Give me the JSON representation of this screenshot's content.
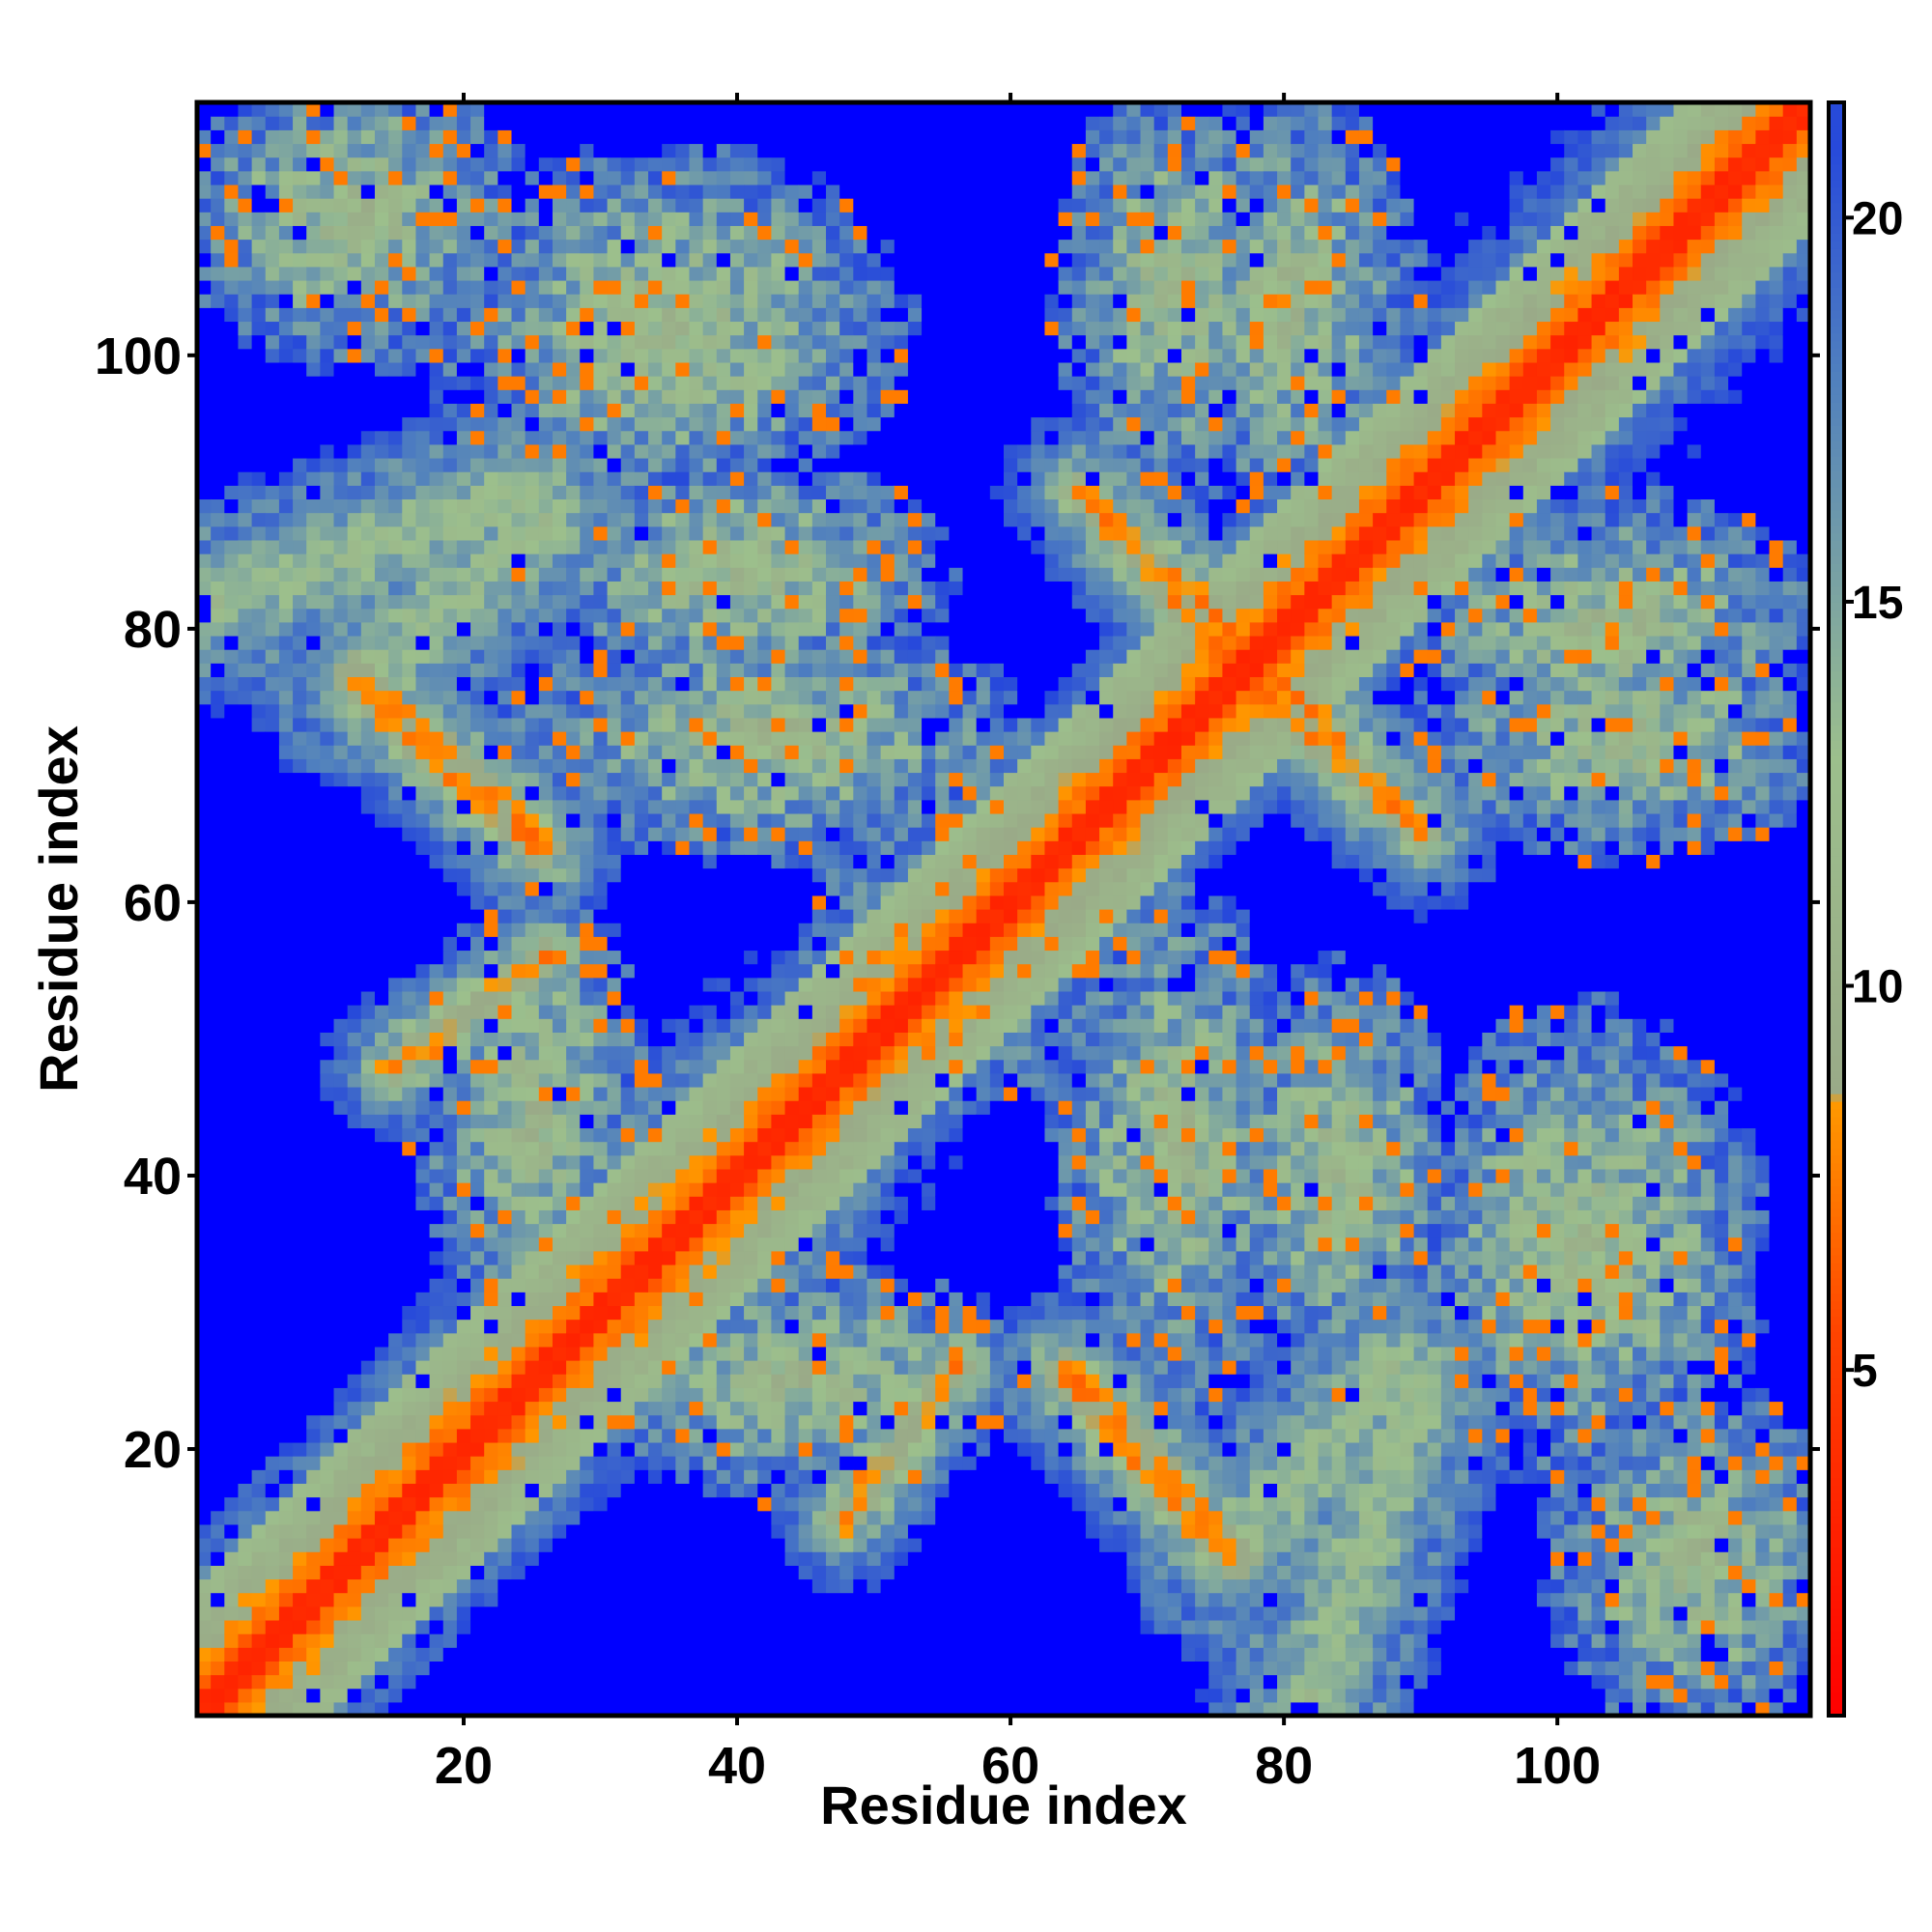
{
  "chart_data": {
    "type": "heatmap",
    "title": "",
    "xlabel": "Residue index",
    "ylabel": "Residue index",
    "n_residues": 118,
    "xlim": [
      0.5,
      118.5
    ],
    "ylim": [
      0.5,
      118.5
    ],
    "x_ticks": [
      20,
      40,
      60,
      80,
      100
    ],
    "y_ticks": [
      20,
      40,
      60,
      80,
      100
    ],
    "x_tick_labels": [
      "20",
      "40",
      "60",
      "80",
      "100"
    ],
    "y_tick_labels": [
      "20",
      "40",
      "60",
      "80",
      "100"
    ],
    "colorbar": {
      "range": [
        0.5,
        21.5
      ],
      "ticks": [
        5,
        10,
        15,
        20
      ],
      "tick_labels": [
        "5",
        "10",
        "15",
        "20"
      ],
      "stops": [
        {
          "value": 0.5,
          "color": "#ff0000"
        },
        {
          "value": 5.5,
          "color": "#ff4400"
        },
        {
          "value": 8.5,
          "color": "#ff9900"
        },
        {
          "value": 8.6,
          "color": "#9aaa88"
        },
        {
          "value": 13.0,
          "color": "#9cbf8c"
        },
        {
          "value": 18.0,
          "color": "#4f7fbf"
        },
        {
          "value": 21.5,
          "color": "#1f3fe0"
        }
      ],
      "saturation_color": "#0000ff",
      "saturation_value": 21
    },
    "encoding": "Symmetric distance map. Main diagonal distance ~3.8. Contact bands listed as segments in residue coordinates.",
    "diagonal_band": {
      "width": 3.2,
      "core": 0.8,
      "color": "#ff0000"
    },
    "contact_bands": [
      {
        "name": "helix-1",
        "from": [
          1,
          1
        ],
        "to": [
          26,
          26
        ],
        "width": 6.0,
        "kind": "diagonal"
      },
      {
        "name": "helix-2",
        "from": [
          26,
          26
        ],
        "to": [
          46,
          46
        ],
        "width": 9.0,
        "kind": "diagonal"
      },
      {
        "name": "helix-3",
        "from": [
          96,
          96
        ],
        "to": [
          118,
          118
        ],
        "width": 9.0,
        "kind": "diagonal"
      },
      {
        "name": "anti-1",
        "from": [
          12,
          76
        ],
        "to": [
          25,
          64
        ],
        "width": 3.0,
        "strong": 3.2
      },
      {
        "name": "anti-2",
        "from": [
          64,
          26
        ],
        "to": [
          77,
          12
        ],
        "width": 3.0,
        "strong": 3.2
      },
      {
        "name": "anti-3",
        "from": [
          66,
          89
        ],
        "to": [
          79,
          77
        ],
        "width": 3.0,
        "strong": 3.2
      },
      {
        "name": "anti-4",
        "from": [
          77,
          77
        ],
        "to": [
          90,
          65
        ],
        "width": 3.0,
        "strong": 3.2
      },
      {
        "name": "anti-5",
        "from": [
          48,
          15
        ],
        "to": [
          56,
          26
        ],
        "width": 2.5,
        "strong": 3.0
      },
      {
        "name": "anti-6",
        "from": [
          15,
          48
        ],
        "to": [
          26,
          56
        ],
        "width": 2.5,
        "strong": 3.0
      },
      {
        "name": "weak-1",
        "from": [
          2,
          82
        ],
        "to": [
          25,
          90
        ],
        "width": 5.0,
        "strong": 0
      },
      {
        "name": "weak-2",
        "from": [
          82,
          2
        ],
        "to": [
          90,
          25
        ],
        "width": 5.0,
        "strong": 0
      },
      {
        "name": "weak-3",
        "from": [
          76,
          12
        ],
        "to": [
          88,
          26
        ],
        "width": 5.0,
        "strong": 0
      },
      {
        "name": "weak-4",
        "from": [
          24,
          26
        ],
        "to": [
          40,
          44
        ],
        "width": 5.0,
        "strong": 0
      }
    ],
    "clouds": [
      {
        "center": [
          35,
          102
        ],
        "rx": 16,
        "ry": 12
      },
      {
        "center": [
          102,
          35
        ],
        "rx": 12,
        "ry": 16
      },
      {
        "center": [
          12,
          110
        ],
        "rx": 12,
        "ry": 10
      },
      {
        "center": [
          110,
          12
        ],
        "rx": 10,
        "ry": 12
      },
      {
        "center": [
          80,
          104
        ],
        "rx": 9,
        "ry": 14
      },
      {
        "center": [
          104,
          80
        ],
        "rx": 14,
        "ry": 9
      },
      {
        "center": [
          42,
          72
        ],
        "rx": 18,
        "ry": 8
      },
      {
        "center": [
          72,
          42
        ],
        "rx": 8,
        "ry": 18
      },
      {
        "center": [
          105,
          72
        ],
        "rx": 14,
        "ry": 8
      },
      {
        "center": [
          72,
          105
        ],
        "rx": 8,
        "ry": 14
      },
      {
        "center": [
          55,
          55
        ],
        "rx": 10,
        "ry": 10
      },
      {
        "center": [
          25,
          45
        ],
        "rx": 8,
        "ry": 14
      },
      {
        "center": [
          45,
          25
        ],
        "rx": 14,
        "ry": 8
      },
      {
        "center": [
          84,
          40
        ],
        "rx": 8,
        "ry": 14
      },
      {
        "center": [
          40,
          84
        ],
        "rx": 14,
        "ry": 8
      }
    ]
  }
}
